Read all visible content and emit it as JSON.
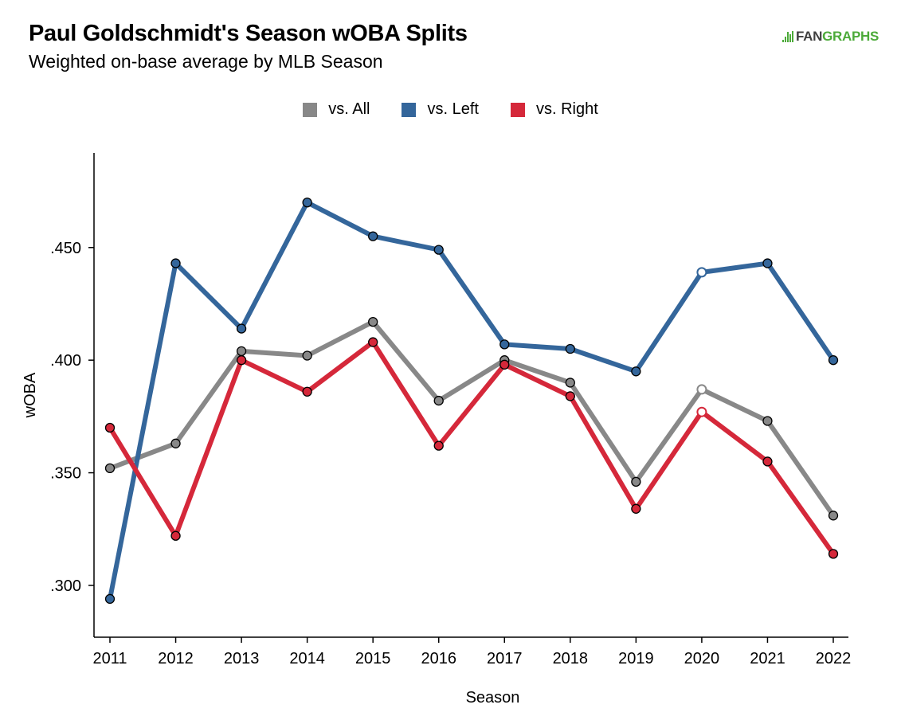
{
  "header": {
    "title": "Paul Goldschmidt's Season wOBA Splits",
    "subtitle": "Weighted on-base average by MLB Season",
    "logo_fan": "FAN",
    "logo_graphs": "GRAPHS"
  },
  "chart_data": {
    "type": "line",
    "title": "Paul Goldschmidt's Season wOBA Splits",
    "subtitle": "Weighted on-base average by MLB Season",
    "xlabel": "Season",
    "ylabel": "wOBA",
    "x": [
      2011,
      2012,
      2013,
      2014,
      2015,
      2016,
      2017,
      2018,
      2019,
      2020,
      2021,
      2022
    ],
    "xtick_labels": [
      "2011",
      "2012",
      "2013",
      "2014",
      "2015",
      "2016",
      "2017",
      "2018",
      "2019",
      "2020",
      "2021",
      "2022"
    ],
    "yticks": [
      0.3,
      0.35,
      0.4,
      0.45
    ],
    "ytick_labels": [
      ".300",
      ".350",
      ".400",
      ".450"
    ],
    "ylim": [
      0.277,
      0.492
    ],
    "grid": false,
    "legend_position": "top",
    "hollow_markers_x": [
      2020
    ],
    "series": [
      {
        "name": "vs. All",
        "color": "#888888",
        "values": [
          0.352,
          0.363,
          0.404,
          0.402,
          0.417,
          0.382,
          0.4,
          0.39,
          0.346,
          0.387,
          0.373,
          0.331
        ]
      },
      {
        "name": "vs. Left",
        "color": "#34669b",
        "values": [
          0.294,
          0.443,
          0.414,
          0.47,
          0.455,
          0.449,
          0.407,
          0.405,
          0.395,
          0.439,
          0.443,
          0.4
        ]
      },
      {
        "name": "vs. Right",
        "color": "#d5283a",
        "values": [
          0.37,
          0.322,
          0.4,
          0.386,
          0.408,
          0.362,
          0.398,
          0.384,
          0.334,
          0.377,
          0.355,
          0.314
        ]
      }
    ]
  }
}
